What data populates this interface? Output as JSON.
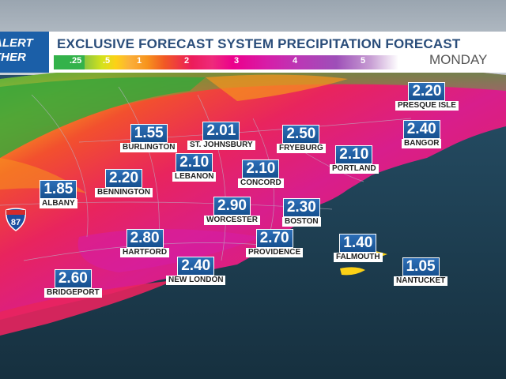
{
  "header": {
    "logo_line1": "ALERT",
    "logo_line2": "THER",
    "title": "EXCLUSIVE FORECAST SYSTEM PRECIPITATION FORECAST",
    "day": "MONDAY"
  },
  "legend": {
    "ticks": [
      ".25",
      ".5",
      "1",
      "2",
      "3",
      "4",
      "5"
    ]
  },
  "highway_shield": "87",
  "locations": [
    {
      "name": "PRESQUE ISLE",
      "value": "2.20"
    },
    {
      "name": "BURLINGTON",
      "value": "1.55"
    },
    {
      "name": "ST. JOHNSBURY",
      "value": "2.01"
    },
    {
      "name": "FRYEBURG",
      "value": "2.50"
    },
    {
      "name": "BANGOR",
      "value": "2.40"
    },
    {
      "name": "LEBANON",
      "value": "2.10"
    },
    {
      "name": "PORTLAND",
      "value": "2.10"
    },
    {
      "name": "BENNINGTON",
      "value": "2.20"
    },
    {
      "name": "CONCORD",
      "value": "2.10"
    },
    {
      "name": "ALBANY",
      "value": "1.85"
    },
    {
      "name": "WORCESTER",
      "value": "2.90"
    },
    {
      "name": "BOSTON",
      "value": "2.30"
    },
    {
      "name": "HARTFORD",
      "value": "2.80"
    },
    {
      "name": "PROVIDENCE",
      "value": "2.70"
    },
    {
      "name": "FALMOUTH",
      "value": "1.40"
    },
    {
      "name": "NEW LONDON",
      "value": "2.40"
    },
    {
      "name": "NANTUCKET",
      "value": "1.05"
    },
    {
      "name": "BRIDGEPORT",
      "value": "2.60"
    }
  ]
}
